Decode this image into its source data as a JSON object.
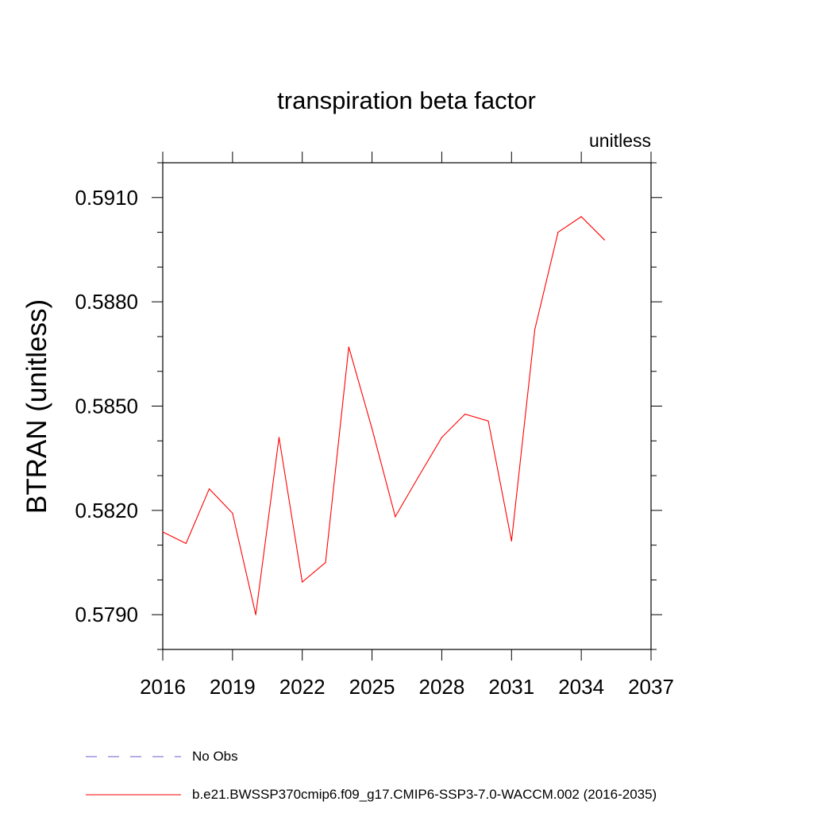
{
  "chart_data": {
    "type": "line",
    "title": "transpiration beta factor",
    "units_label": "unitless",
    "ylabel": "BTRAN  (unitless)",
    "xlabel": "",
    "xlim": [
      2016,
      2037
    ],
    "ylim": [
      0.578,
      0.592
    ],
    "x_ticks": [
      2016,
      2019,
      2022,
      2025,
      2028,
      2031,
      2034,
      2037
    ],
    "x_tick_labels": [
      "2016",
      "2019",
      "2022",
      "2025",
      "2028",
      "2031",
      "2034",
      "2037"
    ],
    "y_ticks": [
      0.579,
      0.582,
      0.585,
      0.588,
      0.591
    ],
    "y_tick_labels": [
      "0.5790",
      "0.5820",
      "0.5850",
      "0.5880",
      "0.5910"
    ],
    "series": [
      {
        "name": "b.e21.BWSSP370cmip6.f09_g17.CMIP6-SSP3-7.0-WACCM.002 (2016-2035)",
        "color": "#ff0000",
        "x": [
          2016,
          2017,
          2018,
          2019,
          2020,
          2021,
          2022,
          2023,
          2024,
          2025,
          2026,
          2027,
          2028,
          2029,
          2030,
          2031,
          2032,
          2033,
          2034,
          2035
        ],
        "values": [
          0.58138,
          0.58105,
          0.58262,
          0.58192,
          0.579,
          0.5841,
          0.57994,
          0.5805,
          0.5867,
          0.58435,
          0.58182,
          0.58297,
          0.5841,
          0.58477,
          0.58457,
          0.58112,
          0.5872,
          0.59,
          0.59045,
          0.58978
        ]
      }
    ],
    "legend": [
      {
        "label": "No Obs",
        "style": "dashed",
        "color": "#6a5acd"
      },
      {
        "label": "b.e21.BWSSP370cmip6.f09_g17.CMIP6-SSP3-7.0-WACCM.002 (2016-2035)",
        "style": "solid",
        "color": "#ff0000"
      }
    ]
  }
}
